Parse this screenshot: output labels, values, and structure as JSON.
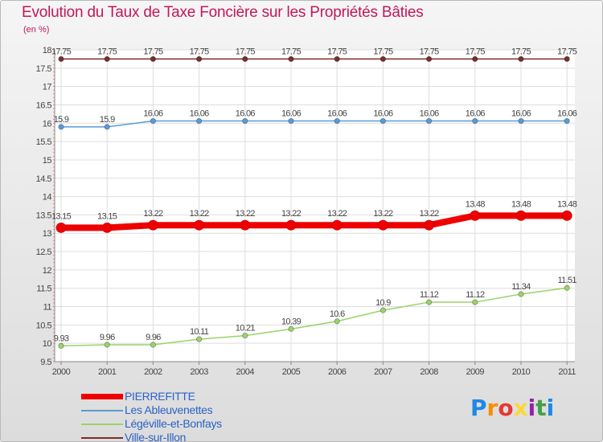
{
  "title": "Evolution du Taux de Taxe Foncière sur les Propriétés Bâties",
  "subtitle": "(en %)",
  "logo": {
    "text": "Proxiti",
    "colors": [
      "#1e88e5",
      "#fb8c00",
      "#e53935",
      "#fdd835",
      "#8e24aa",
      "#43a047",
      "#1e88e5"
    ]
  },
  "chart_data": {
    "type": "line",
    "x": [
      "2000",
      "2001",
      "2002",
      "2003",
      "2004",
      "2005",
      "2006",
      "2007",
      "2008",
      "2009",
      "2010",
      "2011"
    ],
    "ylim": [
      9.5,
      18
    ],
    "yticks": [
      "9.5",
      "10",
      "10.5",
      "11",
      "11.5",
      "12",
      "12.5",
      "13",
      "13.5",
      "14",
      "14.5",
      "15",
      "15.5",
      "16",
      "16.5",
      "17",
      "17.5",
      "18"
    ],
    "grid": true,
    "legend_position": "bottom-left",
    "series": [
      {
        "name": "PIERREFITTE",
        "color": "#ee0000",
        "values": [
          13.15,
          13.15,
          13.22,
          13.22,
          13.22,
          13.22,
          13.22,
          13.22,
          13.22,
          13.48,
          13.48,
          13.48
        ],
        "labels": [
          "13.15",
          "13.15",
          "13.22",
          "13.22",
          "13.22",
          "13.22",
          "13.22",
          "13.22",
          "13.22",
          "13.48",
          "13.48",
          "13.48"
        ]
      },
      {
        "name": "Les Ableuvenettes",
        "color": "#5b9bd5",
        "values": [
          15.9,
          15.9,
          16.06,
          16.06,
          16.06,
          16.06,
          16.06,
          16.06,
          16.06,
          16.06,
          16.06,
          16.06
        ],
        "labels": [
          "15.9",
          "15.9",
          "16.06",
          "16.06",
          "16.06",
          "16.06",
          "16.06",
          "16.06",
          "16.06",
          "16.06",
          "16.06",
          "16.06"
        ]
      },
      {
        "name": "Légéville-et-Bonfays",
        "color": "#9ad36a",
        "values": [
          9.93,
          9.96,
          9.96,
          10.11,
          10.21,
          10.39,
          10.6,
          10.9,
          11.12,
          11.12,
          11.34,
          11.51
        ],
        "labels": [
          "9.93",
          "9.96",
          "9.96",
          "10.11",
          "10.21",
          "10.39",
          "10.6",
          "10.9",
          "11.12",
          "11.12",
          "11.34",
          "11.51"
        ]
      },
      {
        "name": "Ville-sur-Illon",
        "color": "#7b2c2c",
        "values": [
          17.75,
          17.75,
          17.75,
          17.75,
          17.75,
          17.75,
          17.75,
          17.75,
          17.75,
          17.75,
          17.75,
          17.75
        ],
        "labels": [
          "17.75",
          "17.75",
          "17.75",
          "17.75",
          "17.75",
          "17.75",
          "17.75",
          "17.75",
          "17.75",
          "17.75",
          "17.75",
          "17.75"
        ]
      }
    ]
  }
}
